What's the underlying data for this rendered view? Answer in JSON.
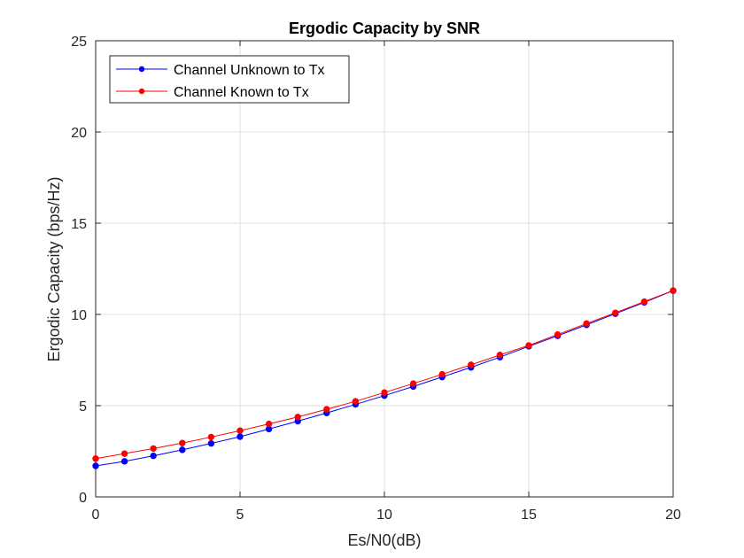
{
  "chart_data": {
    "type": "line",
    "title": "Ergodic Capacity by SNR",
    "xlabel": "Es/N0(dB)",
    "ylabel": "Ergodic Capacity (bps/Hz)",
    "xlim": [
      0,
      20
    ],
    "ylim": [
      0,
      25
    ],
    "xticks": [
      "0",
      "5",
      "10",
      "15",
      "20"
    ],
    "yticks": [
      "0",
      "5",
      "10",
      "15",
      "20",
      "25"
    ],
    "grid": true,
    "legend_position": "top-left",
    "x": [
      0,
      1,
      2,
      3,
      4,
      5,
      6,
      7,
      8,
      9,
      10,
      11,
      12,
      13,
      14,
      15,
      16,
      17,
      18,
      19,
      20
    ],
    "series": [
      {
        "name": "Channel Unknown to Tx",
        "color": "#0000ff",
        "values": [
          1.7,
          1.95,
          2.25,
          2.58,
          2.93,
          3.3,
          3.72,
          4.15,
          4.6,
          5.07,
          5.55,
          6.05,
          6.57,
          7.1,
          7.66,
          8.25,
          8.83,
          9.43,
          10.04,
          10.66,
          11.3
        ]
      },
      {
        "name": "Channel Known to Tx",
        "color": "#ff0000",
        "values": [
          2.1,
          2.37,
          2.65,
          2.95,
          3.28,
          3.63,
          4.0,
          4.38,
          4.8,
          5.24,
          5.72,
          6.21,
          6.72,
          7.24,
          7.78,
          8.3,
          8.9,
          9.5,
          10.09,
          10.7,
          11.31
        ]
      }
    ]
  }
}
